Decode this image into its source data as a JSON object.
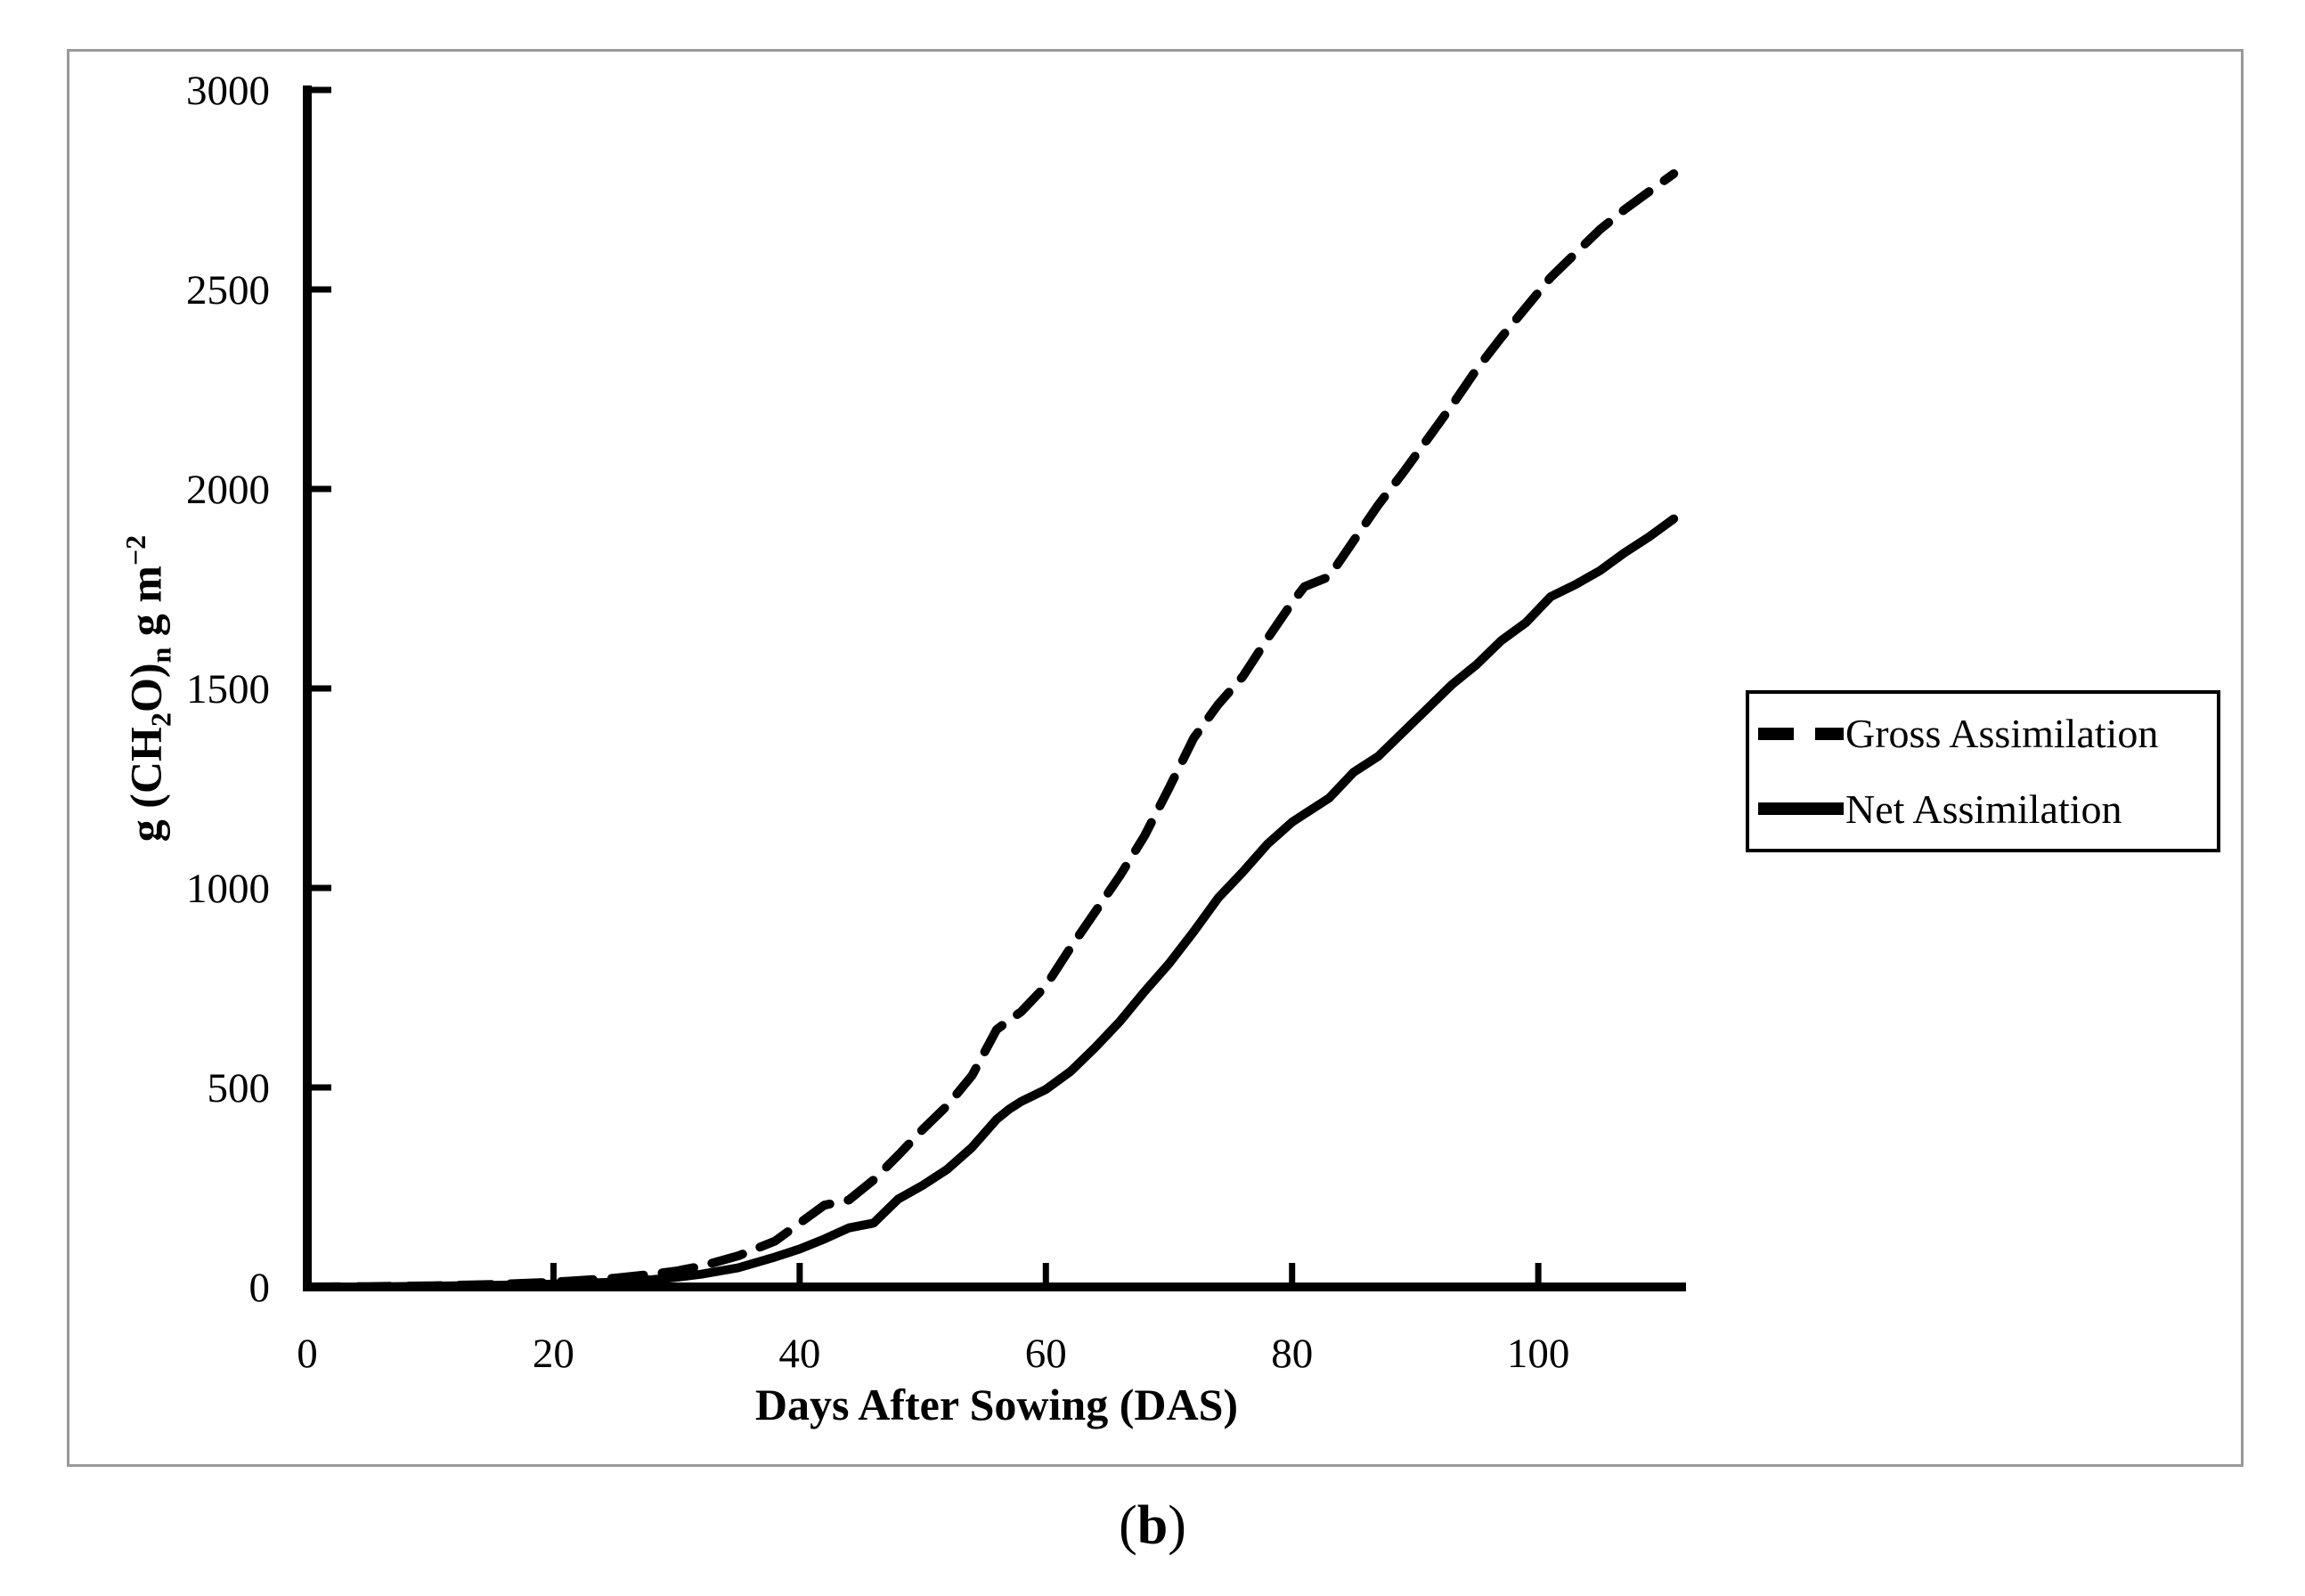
{
  "figure": {
    "border_color": "#999999",
    "background": "#ffffff",
    "caption": {
      "open": "(",
      "letter": "b",
      "close": ")"
    }
  },
  "chart_data": {
    "type": "line",
    "title": "",
    "xlabel": "Days After Sowing (DAS)",
    "ylabel": "g (CH2O)n g m-2",
    "ylabel_parts": [
      {
        "text": "g (CH"
      },
      {
        "text": "2",
        "script": "sub"
      },
      {
        "text": "O)"
      },
      {
        "text": "n",
        "script": "sub"
      },
      {
        "text": " g m"
      },
      {
        "text": "−2",
        "script": "sup"
      }
    ],
    "xlim": [
      0,
      112
    ],
    "ylim": [
      0,
      3000
    ],
    "x_ticks": [
      0,
      20,
      40,
      60,
      80,
      100
    ],
    "y_ticks": [
      0,
      500,
      1000,
      1500,
      2000,
      2500,
      3000
    ],
    "grid": false,
    "legend_position": "right-outside",
    "line_color": "#000000",
    "x": [
      0,
      5,
      10,
      15,
      20,
      25,
      28,
      30,
      32,
      35,
      38,
      40,
      42,
      44,
      46,
      48,
      50,
      52,
      54,
      56,
      57,
      58,
      60,
      62,
      64,
      66,
      68,
      70,
      72,
      74,
      76,
      78,
      80,
      81,
      83,
      85,
      87,
      89,
      91,
      93,
      95,
      97,
      99,
      101,
      103,
      105,
      107,
      109,
      111
    ],
    "series": [
      {
        "name": "Gross Assimilation",
        "style": "dashed",
        "color": "#000000",
        "values": [
          0,
          1,
          3,
          6,
          12,
          22,
          32,
          40,
          52,
          78,
          115,
          160,
          205,
          218,
          268,
          330,
          395,
          455,
          530,
          645,
          668,
          690,
          755,
          850,
          940,
          1030,
          1130,
          1250,
          1375,
          1460,
          1530,
          1625,
          1715,
          1755,
          1780,
          1870,
          1960,
          2040,
          2125,
          2210,
          2300,
          2380,
          2455,
          2530,
          2590,
          2650,
          2700,
          2745,
          2790
        ]
      },
      {
        "name": "Net Assimilation",
        "style": "solid",
        "color": "#000000",
        "values": [
          0,
          0,
          2,
          4,
          7,
          12,
          18,
          24,
          32,
          48,
          75,
          95,
          120,
          148,
          160,
          220,
          255,
          295,
          350,
          420,
          445,
          465,
          495,
          540,
          600,
          665,
          740,
          810,
          890,
          975,
          1040,
          1110,
          1165,
          1185,
          1225,
          1290,
          1330,
          1390,
          1450,
          1510,
          1560,
          1620,
          1665,
          1730,
          1760,
          1795,
          1840,
          1880,
          1925
        ]
      }
    ]
  }
}
